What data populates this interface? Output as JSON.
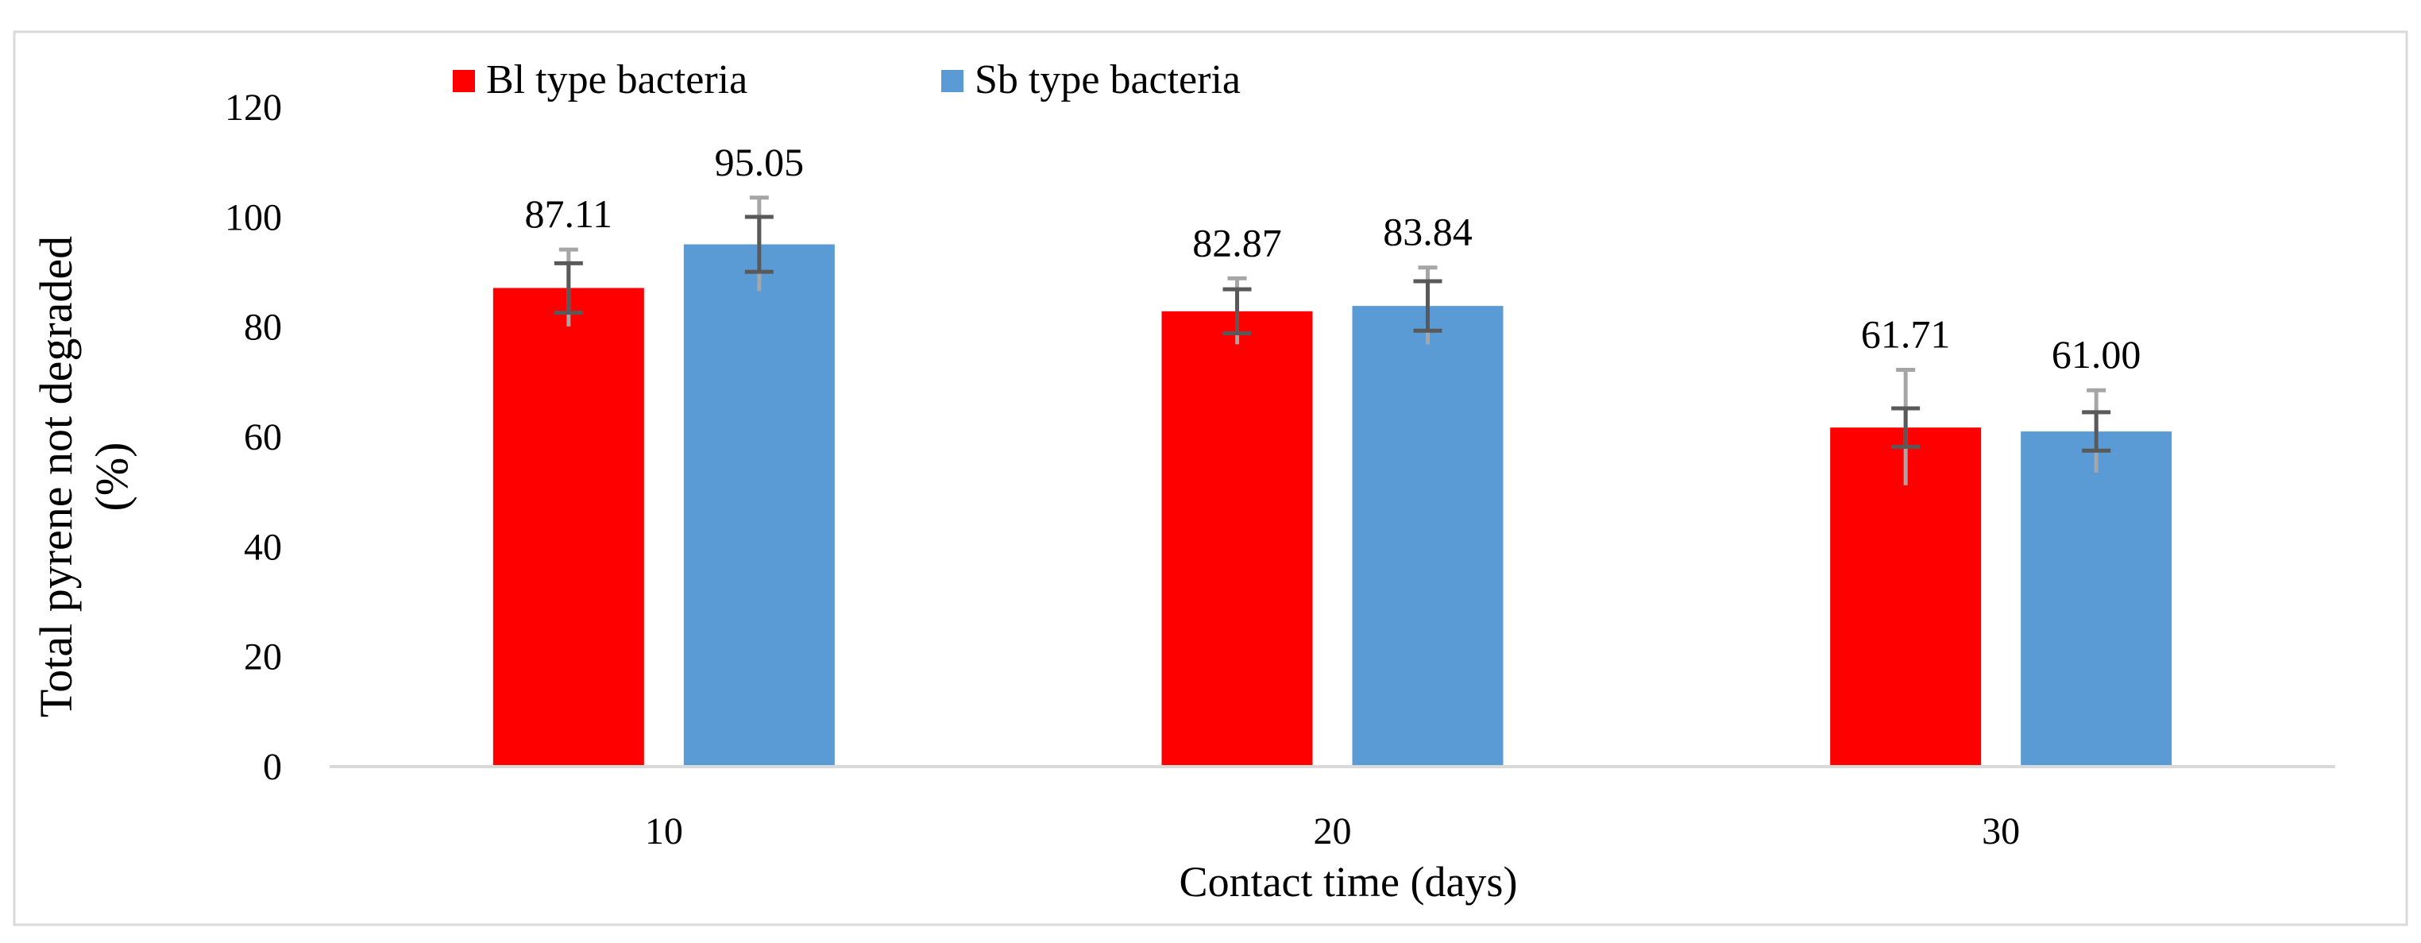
{
  "chart_data": {
    "type": "bar",
    "title": "",
    "xlabel": "Contact time (days)",
    "ylabel": "Total pyrene not degraded (%)",
    "ylabel_lines": [
      "Total pyrene not degraded",
      "(%)"
    ],
    "categories": [
      "10",
      "20",
      "30"
    ],
    "ylim": [
      0,
      120
    ],
    "yticks": [
      0,
      20,
      40,
      60,
      80,
      100,
      120
    ],
    "grid": false,
    "legend": "top-left",
    "series": [
      {
        "name": "Bl type bacteria",
        "color": "#ff0000",
        "values": [
          87.11,
          82.87,
          61.71
        ],
        "labels": [
          "87.11",
          "82.87",
          "61.71"
        ],
        "error_dark": [
          4.5,
          4.0,
          3.5
        ],
        "error_light": [
          7.0,
          6.0,
          10.5
        ]
      },
      {
        "name": "Sb type bacteria",
        "color": "#5b9bd5",
        "values": [
          95.05,
          83.84,
          61.0
        ],
        "labels": [
          "95.05",
          "83.84",
          "61.00"
        ],
        "error_dark": [
          5.0,
          4.5,
          3.5
        ],
        "error_light": [
          8.5,
          7.0,
          7.5
        ]
      }
    ]
  }
}
